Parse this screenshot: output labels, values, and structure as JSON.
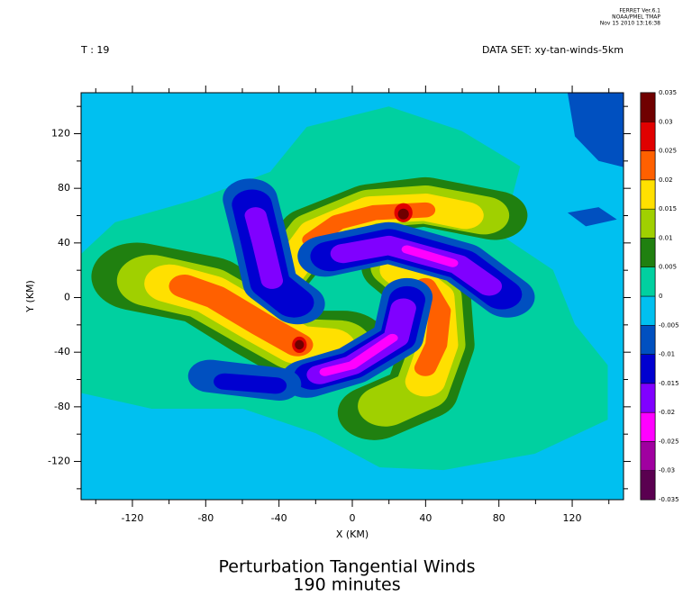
{
  "header": {
    "software": "FERRET  Ver.6.1",
    "org": "NOAA/PMEL TMAP",
    "date": "Nov 15 2010 13:16:38",
    "time_label": "T : 19",
    "dataset_label": "DATA SET: xy-tan-winds-5km"
  },
  "chart_data": {
    "type": "contour",
    "title": "Perturbation Tangential Winds",
    "subtitle": "190 minutes",
    "xlabel": "X (KM)",
    "ylabel": "Y (KM)",
    "xlim": [
      -148,
      148
    ],
    "ylim": [
      -148,
      150
    ],
    "xticks": [
      -120,
      -80,
      -40,
      0,
      40,
      80,
      120
    ],
    "yticks": [
      -120,
      -80,
      -40,
      0,
      40,
      80,
      120
    ],
    "xminor": [
      -140,
      -100,
      -60,
      -20,
      20,
      60,
      100,
      140
    ],
    "yminor": [
      -140,
      -100,
      -60,
      -20,
      20,
      60,
      100,
      140
    ],
    "levels": [
      -0.035,
      -0.03,
      -0.025,
      -0.02,
      -0.015,
      -0.01,
      -0.005,
      0,
      0.005,
      0.01,
      0.015,
      0.02,
      0.025,
      0.03,
      0.035
    ],
    "colors": [
      "#5a0050",
      "#a000a0",
      "#ff00ff",
      "#8000ff",
      "#0000d0",
      "#0050c0",
      "#00c0f0",
      "#00d0a0",
      "#208010",
      "#a0d000",
      "#ffe000",
      "#ff6000",
      "#e00000",
      "#700000"
    ]
  }
}
